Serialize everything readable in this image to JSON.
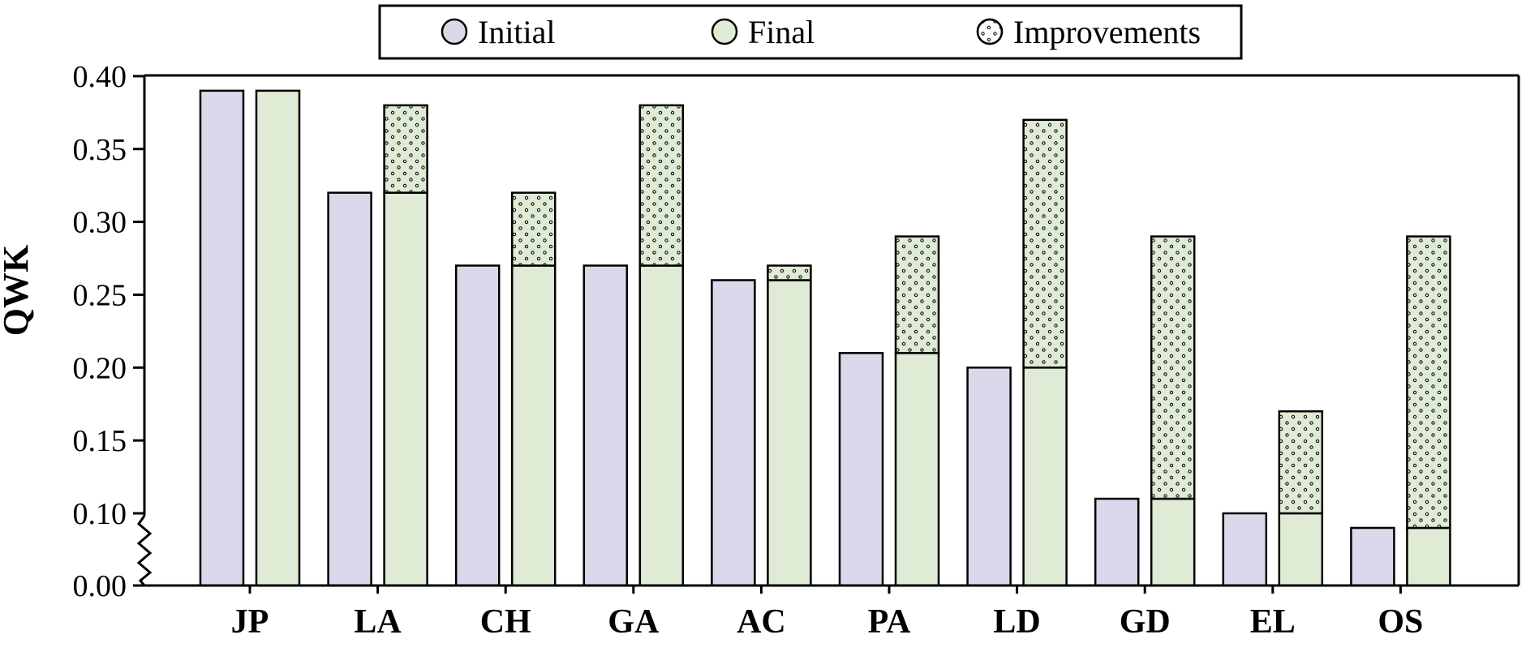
{
  "figure": {
    "ylabel": "QWK"
  },
  "legend": {
    "items": [
      {
        "label": "Initial"
      },
      {
        "label": "Final"
      },
      {
        "label": "Improvements"
      }
    ]
  },
  "chart_data": {
    "type": "bar",
    "title": "",
    "xlabel": "",
    "ylabel": "QWK",
    "categories": [
      "JP",
      "LA",
      "CH",
      "GA",
      "AC",
      "PA",
      "LD",
      "GD",
      "EL",
      "OS"
    ],
    "series": [
      {
        "name": "Initial",
        "role": "initial",
        "values": [
          0.39,
          0.32,
          0.27,
          0.27,
          0.26,
          0.21,
          0.2,
          0.11,
          0.1,
          0.09
        ]
      },
      {
        "name": "Final",
        "role": "final",
        "values": [
          0.39,
          0.32,
          0.27,
          0.27,
          0.26,
          0.21,
          0.2,
          0.11,
          0.1,
          0.09
        ]
      },
      {
        "name": "Improvements",
        "role": "improvement_stacked_on_final",
        "values": [
          0.0,
          0.06,
          0.05,
          0.11,
          0.01,
          0.08,
          0.17,
          0.18,
          0.07,
          0.2
        ]
      }
    ],
    "final_totals_with_improvements": [
      0.39,
      0.38,
      0.32,
      0.38,
      0.27,
      0.29,
      0.37,
      0.29,
      0.17,
      0.29
    ],
    "ylim": [
      0.0,
      0.4
    ],
    "yticks": [
      0.0,
      0.1,
      0.15,
      0.2,
      0.25,
      0.3,
      0.35,
      0.4
    ],
    "ytick_decimals": 2,
    "axis_break": {
      "axis": "y",
      "between": [
        0.0,
        0.1
      ]
    },
    "grid": false,
    "legend_position": "top-center",
    "colors": {
      "initial_fill": "#dcd8ec",
      "final_fill": "#dfebd5",
      "improvement_fill": "#dfebd5",
      "improvement_hatch": "dots",
      "bar_edge": "#000000",
      "axis": "#000000",
      "background": "#ffffff"
    }
  }
}
